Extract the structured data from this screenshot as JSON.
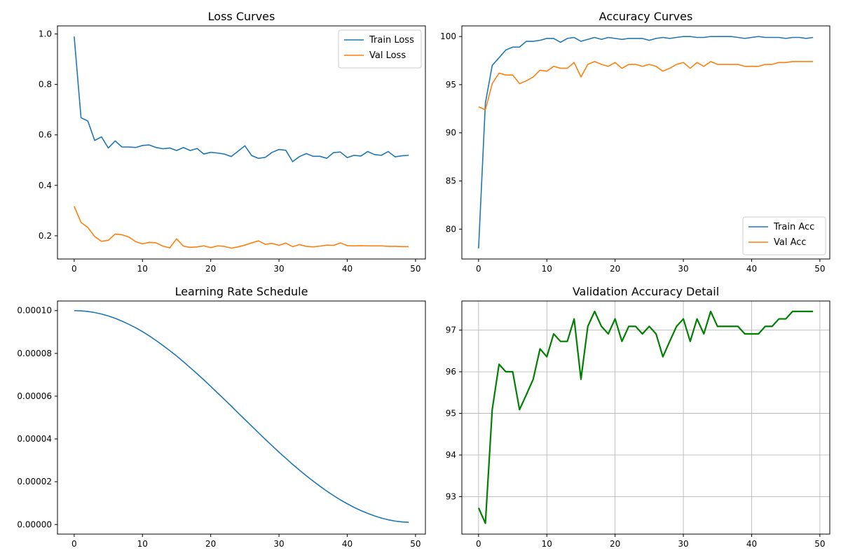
{
  "chart_data": [
    {
      "type": "line",
      "title": "Loss Curves",
      "xlabel": "",
      "ylabel": "",
      "xlim": [
        -2.45,
        51.45
      ],
      "ylim": [
        0.108,
        1.032
      ],
      "xticks": [
        0,
        10,
        20,
        30,
        40,
        50
      ],
      "yticks": [
        0.2,
        0.4,
        0.6,
        0.8,
        1.0
      ],
      "ytick_labels": [
        "0.2",
        "0.4",
        "0.6",
        "0.8",
        "1.0"
      ],
      "grid": false,
      "legend": "top-right",
      "x": [
        0,
        1,
        2,
        3,
        4,
        5,
        6,
        7,
        8,
        9,
        10,
        11,
        12,
        13,
        14,
        15,
        16,
        17,
        18,
        19,
        20,
        21,
        22,
        23,
        24,
        25,
        26,
        27,
        28,
        29,
        30,
        31,
        32,
        33,
        34,
        35,
        36,
        37,
        38,
        39,
        40,
        41,
        42,
        43,
        44,
        45,
        46,
        47,
        48,
        49
      ],
      "series": [
        {
          "name": "Train Loss",
          "color": "#1f77b4",
          "values": [
            0.99,
            0.668,
            0.655,
            0.578,
            0.592,
            0.548,
            0.576,
            0.552,
            0.552,
            0.55,
            0.558,
            0.56,
            0.55,
            0.545,
            0.548,
            0.538,
            0.55,
            0.538,
            0.546,
            0.524,
            0.531,
            0.528,
            0.524,
            0.514,
            0.535,
            0.557,
            0.518,
            0.507,
            0.511,
            0.531,
            0.542,
            0.539,
            0.494,
            0.514,
            0.526,
            0.515,
            0.515,
            0.507,
            0.53,
            0.532,
            0.51,
            0.519,
            0.516,
            0.534,
            0.522,
            0.519,
            0.534,
            0.513,
            0.517,
            0.519
          ]
        },
        {
          "name": "Val Loss",
          "color": "#ff7f0e",
          "values": [
            0.317,
            0.253,
            0.233,
            0.197,
            0.178,
            0.182,
            0.207,
            0.204,
            0.195,
            0.177,
            0.168,
            0.174,
            0.172,
            0.159,
            0.152,
            0.188,
            0.159,
            0.154,
            0.156,
            0.16,
            0.153,
            0.16,
            0.158,
            0.151,
            0.156,
            0.163,
            0.172,
            0.18,
            0.166,
            0.17,
            0.162,
            0.171,
            0.157,
            0.165,
            0.158,
            0.156,
            0.159,
            0.163,
            0.162,
            0.172,
            0.161,
            0.16,
            0.161,
            0.16,
            0.16,
            0.16,
            0.158,
            0.158,
            0.157,
            0.157
          ]
        }
      ]
    },
    {
      "type": "line",
      "title": "Accuracy Curves",
      "xlabel": "",
      "ylabel": "",
      "xlim": [
        -2.45,
        51.45
      ],
      "ylim": [
        76.9,
        101.1
      ],
      "xticks": [
        0,
        10,
        20,
        30,
        40,
        50
      ],
      "yticks": [
        80,
        85,
        90,
        95,
        100
      ],
      "ytick_labels": [
        "80",
        "85",
        "90",
        "95",
        "100"
      ],
      "grid": false,
      "legend": "bottom-right",
      "x": [
        0,
        1,
        2,
        3,
        4,
        5,
        6,
        7,
        8,
        9,
        10,
        11,
        12,
        13,
        14,
        15,
        16,
        17,
        18,
        19,
        20,
        21,
        22,
        23,
        24,
        25,
        26,
        27,
        28,
        29,
        30,
        31,
        32,
        33,
        34,
        35,
        36,
        37,
        38,
        39,
        40,
        41,
        42,
        43,
        44,
        45,
        46,
        47,
        48,
        49
      ],
      "series": [
        {
          "name": "Train Acc",
          "color": "#1f77b4",
          "values": [
            78.0,
            93.1,
            97.0,
            97.8,
            98.6,
            98.9,
            98.9,
            99.5,
            99.5,
            99.6,
            99.8,
            99.8,
            99.4,
            99.8,
            99.9,
            99.5,
            99.7,
            99.9,
            99.7,
            99.9,
            99.8,
            99.7,
            99.8,
            99.8,
            99.8,
            99.6,
            99.8,
            99.9,
            99.8,
            99.9,
            100.0,
            100.0,
            99.9,
            99.9,
            100.0,
            100.0,
            100.0,
            100.0,
            99.9,
            99.8,
            99.9,
            100.0,
            99.9,
            99.9,
            99.9,
            99.8,
            99.9,
            99.9,
            99.8,
            99.9
          ]
        },
        {
          "name": "Val Acc",
          "color": "#ff7f0e",
          "values": [
            92.7,
            92.4,
            95.1,
            96.2,
            96.0,
            96.0,
            95.1,
            95.4,
            95.8,
            96.5,
            96.4,
            96.9,
            96.7,
            96.7,
            97.3,
            95.8,
            97.1,
            97.4,
            97.1,
            96.9,
            97.3,
            96.7,
            97.1,
            97.1,
            96.9,
            97.1,
            96.9,
            96.4,
            96.7,
            97.1,
            97.3,
            96.7,
            97.3,
            96.9,
            97.4,
            97.1,
            97.1,
            97.1,
            97.1,
            96.9,
            96.9,
            96.9,
            97.1,
            97.1,
            97.3,
            97.3,
            97.4,
            97.4,
            97.4,
            97.4
          ]
        }
      ]
    },
    {
      "type": "line",
      "title": "Learning Rate Schedule",
      "xlabel": "",
      "ylabel": "",
      "xlim": [
        -2.45,
        51.45
      ],
      "ylim": [
        -4.5e-06,
        0.0001045
      ],
      "xticks": [
        0,
        10,
        20,
        30,
        40,
        50
      ],
      "yticks": [
        0,
        2e-05,
        4e-05,
        6e-05,
        8e-05,
        0.0001
      ],
      "ytick_labels": [
        "0.00000",
        "0.00002",
        "0.00004",
        "0.00006",
        "0.00008",
        "0.00010"
      ],
      "grid": false,
      "legend": "",
      "x": [
        0,
        1,
        2,
        3,
        4,
        5,
        6,
        7,
        8,
        9,
        10,
        11,
        12,
        13,
        14,
        15,
        16,
        17,
        18,
        19,
        20,
        21,
        22,
        23,
        24,
        25,
        26,
        27,
        28,
        29,
        30,
        31,
        32,
        33,
        34,
        35,
        36,
        37,
        38,
        39,
        40,
        41,
        42,
        43,
        44,
        45,
        46,
        47,
        48,
        49
      ],
      "series": [
        {
          "name": "",
          "color": "#1f77b4",
          "values": [
            0.0001,
            9.99e-05,
            9.96e-05,
            9.91e-05,
            9.84e-05,
            9.75e-05,
            9.64e-05,
            9.51e-05,
            9.36e-05,
            9.2e-05,
            9.02e-05,
            8.82e-05,
            8.6e-05,
            8.37e-05,
            8.13e-05,
            7.88e-05,
            7.61e-05,
            7.33e-05,
            7.05e-05,
            6.76e-05,
            6.46e-05,
            6.15e-05,
            5.85e-05,
            5.54e-05,
            5.22e-05,
            4.91e-05,
            4.6e-05,
            4.29e-05,
            3.98e-05,
            3.68e-05,
            3.38e-05,
            3.1e-05,
            2.81e-05,
            2.54e-05,
            2.28e-05,
            2.03e-05,
            1.79e-05,
            1.56e-05,
            1.35e-05,
            1.15e-05,
            9.7e-06,
            8e-06,
            6.5e-06,
            5.2e-06,
            4e-06,
            3e-06,
            2.2e-06,
            1.6e-06,
            1.2e-06,
            1e-06
          ]
        }
      ]
    },
    {
      "type": "line",
      "title": "Validation Accuracy Detail",
      "xlabel": "",
      "ylabel": "",
      "xlim": [
        -2.45,
        51.45
      ],
      "ylim": [
        92.1,
        97.7
      ],
      "xticks": [
        0,
        10,
        20,
        30,
        40,
        50
      ],
      "yticks": [
        93,
        94,
        95,
        96,
        97
      ],
      "ytick_labels": [
        "93",
        "94",
        "95",
        "96",
        "97"
      ],
      "grid": true,
      "legend": "",
      "x": [
        0,
        1,
        2,
        3,
        4,
        5,
        6,
        7,
        8,
        9,
        10,
        11,
        12,
        13,
        14,
        15,
        16,
        17,
        18,
        19,
        20,
        21,
        22,
        23,
        24,
        25,
        26,
        27,
        28,
        29,
        30,
        31,
        32,
        33,
        34,
        35,
        36,
        37,
        38,
        39,
        40,
        41,
        42,
        43,
        44,
        45,
        46,
        47,
        48,
        49
      ],
      "series": [
        {
          "name": "",
          "color": "#008000",
          "values": [
            92.73,
            92.36,
            95.09,
            96.18,
            96.0,
            96.0,
            95.09,
            95.45,
            95.82,
            96.55,
            96.36,
            96.91,
            96.73,
            96.73,
            97.27,
            95.82,
            97.09,
            97.45,
            97.09,
            96.91,
            97.27,
            96.73,
            97.09,
            97.09,
            96.91,
            97.09,
            96.91,
            96.36,
            96.73,
            97.09,
            97.27,
            96.73,
            97.27,
            96.91,
            97.45,
            97.09,
            97.09,
            97.09,
            97.09,
            96.91,
            96.91,
            96.91,
            97.09,
            97.09,
            97.27,
            97.27,
            97.45,
            97.45,
            97.45,
            97.45
          ]
        }
      ]
    }
  ]
}
